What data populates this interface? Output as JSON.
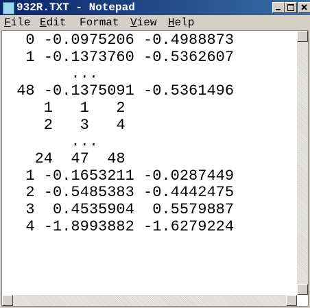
{
  "window": {
    "title": "932R.TXT - Notepad"
  },
  "menu": [
    "File",
    "Edit",
    "Format",
    "View",
    "Help"
  ],
  "document": {
    "lines": [
      "  0 -0.0975206 -0.4988873",
      "  1 -0.1373760 -0.5362607",
      "       ...",
      " 48 -0.1375091 -0.5361496",
      "    1   1   2",
      "    2   3   4",
      "       ...",
      "   24  47  48",
      "  1 -0.1653211 -0.0287449",
      "  2 -0.5485383 -0.4442475",
      "  3  0.4535904  0.5579887",
      "  4 -1.8993882 -1.6279224"
    ]
  }
}
